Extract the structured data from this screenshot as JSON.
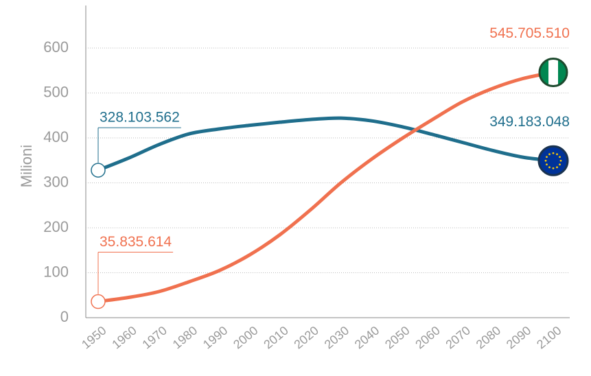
{
  "chart_data": {
    "type": "line",
    "y_label": "Milioni",
    "x": [
      1950,
      1960,
      1970,
      1980,
      1990,
      2000,
      2010,
      2020,
      2030,
      2040,
      2050,
      2060,
      2070,
      2080,
      2090,
      2100
    ],
    "xlim": [
      1950,
      2100
    ],
    "ylim": [
      0,
      690
    ],
    "yticks": [
      0,
      100,
      200,
      300,
      400,
      500,
      600
    ],
    "grid": true,
    "series": [
      {
        "color": "#1f6e8c",
        "values": [
          328.103562,
          355,
          385,
          409,
          420,
          428,
          435,
          441,
          444,
          438,
          425,
          408,
          390,
          372,
          357,
          349.183048
        ],
        "value_labels": [
          "328.103.562",
          null,
          null,
          null,
          null,
          null,
          null,
          null,
          null,
          null,
          null,
          null,
          null,
          null,
          null,
          "349.183.048"
        ]
      },
      {
        "color": "#f0714f",
        "values": [
          35.835614,
          45,
          58,
          80,
          105,
          140,
          185,
          240,
          300,
          352,
          398,
          440,
          480,
          510,
          532,
          545.70551
        ],
        "value_labels": [
          "35.835.614",
          null,
          null,
          null,
          null,
          null,
          null,
          null,
          null,
          null,
          null,
          null,
          null,
          null,
          null,
          "545.705.510"
        ]
      }
    ]
  }
}
